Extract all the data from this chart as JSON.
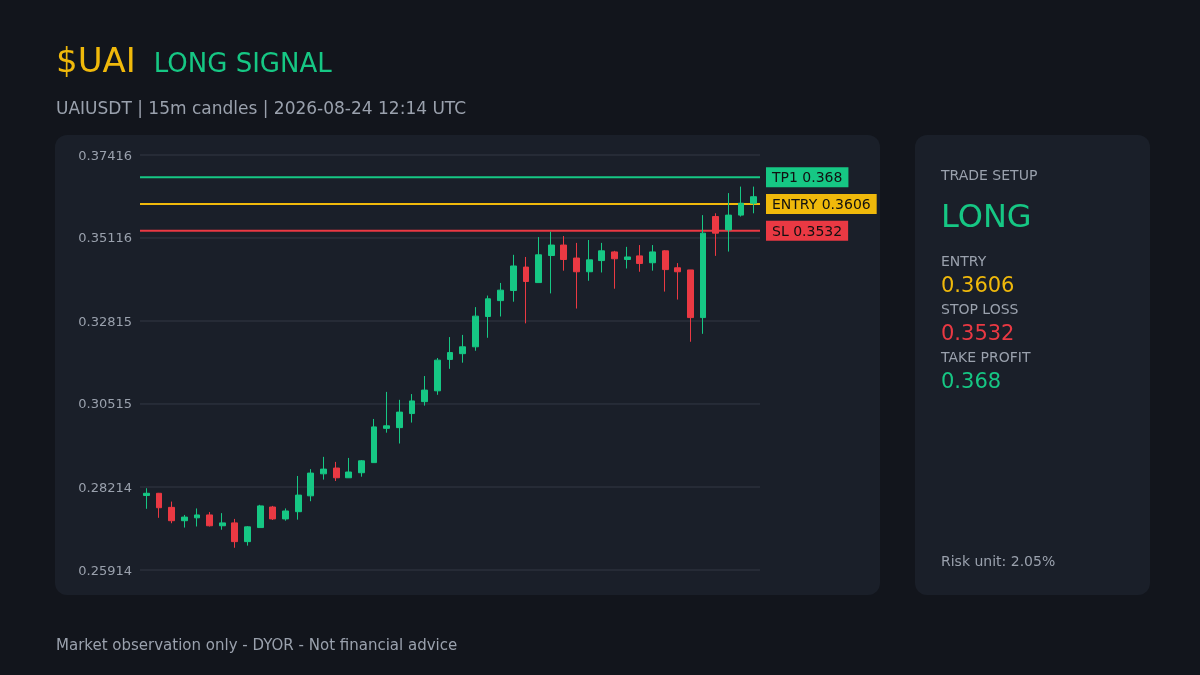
{
  "chart_data": [
    {
      "type": "candlestick",
      "title": "$UAI",
      "subtitle": "LONG SIGNAL",
      "annotations": [
        "UAIUSDT | 15m candles | 2026-08-24 12:14 UTC",
        "Market observation only - DYOR - Not financial advice"
      ],
      "categories": [
        null,
        null,
        null,
        null,
        null,
        null,
        null,
        null,
        null,
        null,
        null,
        null,
        null,
        null,
        null,
        null,
        null,
        null,
        null,
        null,
        null,
        null,
        null,
        null,
        null,
        null,
        null,
        null,
        null,
        null,
        null,
        null,
        null,
        null,
        null,
        null,
        null,
        null,
        null,
        null,
        null,
        null,
        null,
        null,
        null,
        null,
        null,
        null,
        null
      ],
      "ohlc": [
        [
          0.2798,
          0.2818,
          0.2761,
          0.2804
        ],
        [
          0.2804,
          0.2805,
          0.2736,
          0.2764
        ],
        [
          0.2765,
          0.2781,
          0.2721,
          0.2728
        ],
        [
          0.2728,
          0.2744,
          0.2709,
          0.2738
        ],
        [
          0.2736,
          0.2762,
          0.2712,
          0.2744
        ],
        [
          0.2744,
          0.2752,
          0.2712,
          0.2714
        ],
        [
          0.2714,
          0.2749,
          0.2703,
          0.2722
        ],
        [
          0.2722,
          0.2733,
          0.2653,
          0.267
        ],
        [
          0.267,
          0.2713,
          0.2659,
          0.2711
        ],
        [
          0.2709,
          0.2772,
          0.2709,
          0.2769
        ],
        [
          0.2766,
          0.2769,
          0.273,
          0.2733
        ],
        [
          0.2733,
          0.2762,
          0.2728,
          0.2755
        ],
        [
          0.2753,
          0.2852,
          0.2731,
          0.2799
        ],
        [
          0.2797,
          0.2871,
          0.2782,
          0.286
        ],
        [
          0.2858,
          0.2905,
          0.2842,
          0.2871
        ],
        [
          0.2874,
          0.2891,
          0.2838,
          0.2847
        ],
        [
          0.2847,
          0.2902,
          0.2847,
          0.2863
        ],
        [
          0.2861,
          0.2896,
          0.285,
          0.2894
        ],
        [
          0.2889,
          0.301,
          0.2889,
          0.2988
        ],
        [
          0.2984,
          0.3085,
          0.2972,
          0.2991
        ],
        [
          0.2986,
          0.3063,
          0.2942,
          0.3029
        ],
        [
          0.3025,
          0.3079,
          0.3,
          0.306
        ],
        [
          0.3058,
          0.3129,
          0.3047,
          0.309
        ],
        [
          0.3088,
          0.3179,
          0.3077,
          0.3173
        ],
        [
          0.3175,
          0.3237,
          0.3149,
          0.3194
        ],
        [
          0.3191,
          0.3243,
          0.3166,
          0.321
        ],
        [
          0.321,
          0.332,
          0.3199,
          0.3295
        ],
        [
          0.3294,
          0.3352,
          0.3235,
          0.3343
        ],
        [
          0.3338,
          0.3387,
          0.3294,
          0.3367
        ],
        [
          0.3366,
          0.3465,
          0.3335,
          0.3434
        ],
        [
          0.3431,
          0.3459,
          0.3275,
          0.3391
        ],
        [
          0.3388,
          0.3514,
          0.3388,
          0.3465
        ],
        [
          0.3463,
          0.3529,
          0.3358,
          0.3492
        ],
        [
          0.3492,
          0.3517,
          0.3421,
          0.3452
        ],
        [
          0.3456,
          0.3498,
          0.3316,
          0.3418
        ],
        [
          0.3418,
          0.3506,
          0.3393,
          0.3451
        ],
        [
          0.3449,
          0.3498,
          0.3416,
          0.3476
        ],
        [
          0.3473,
          0.3476,
          0.3371,
          0.3454
        ],
        [
          0.3452,
          0.3487,
          0.3427,
          0.3459
        ],
        [
          0.3462,
          0.3492,
          0.3418,
          0.3441
        ],
        [
          0.3443,
          0.3492,
          0.3421,
          0.3473
        ],
        [
          0.3476,
          0.3478,
          0.3363,
          0.3424
        ],
        [
          0.3429,
          0.3442,
          0.3341,
          0.3418
        ],
        [
          0.3423,
          0.3423,
          0.3224,
          0.3291
        ],
        [
          0.3291,
          0.3575,
          0.3246,
          0.3525
        ],
        [
          0.3571,
          0.358,
          0.3462,
          0.3525
        ],
        [
          0.3534,
          0.3636,
          0.3474,
          0.3575
        ],
        [
          0.3575,
          0.3654,
          0.3571,
          0.3608
        ],
        [
          0.3608,
          0.3654,
          0.358,
          0.3626
        ]
      ],
      "ylim": [
        0.25914,
        0.37416
      ],
      "yticks": [
        0.25914,
        0.28214,
        0.30515,
        0.32815,
        0.35116,
        0.37416
      ],
      "grid": "y",
      "tick_labels": "y",
      "ref_lines": [
        {
          "axis": "y",
          "value": 0.368,
          "label": "TP1 0.368",
          "color": "#16c784"
        },
        {
          "axis": "y",
          "value": 0.3606,
          "label": "ENTRY 0.3606",
          "color": "#f0b90b"
        },
        {
          "axis": "y",
          "value": 0.3532,
          "label": "SL 0.3532",
          "color": "#ea3943"
        }
      ]
    },
    {
      "type": "other",
      "title": "TRADE SETUP",
      "annotations": [
        "LONG",
        "ENTRY",
        "0.3606",
        "STOP LOSS",
        "0.3532",
        "TAKE PROFIT",
        "0.368",
        "Risk unit: 2.05%"
      ]
    }
  ]
}
